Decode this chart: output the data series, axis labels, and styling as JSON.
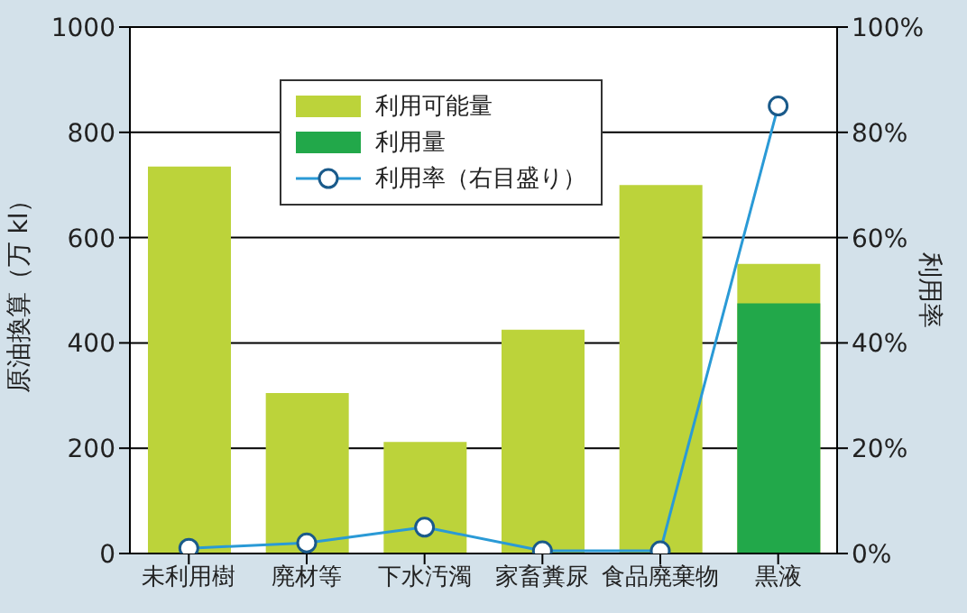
{
  "chart_data": {
    "type": "bar",
    "categories": [
      "未利用樹",
      "廃材等",
      "下水汚濁",
      "家畜糞尿",
      "食品廃棄物",
      "黒液"
    ],
    "ylabel": "原油換算（万 kl）",
    "y2label": "利用率",
    "series": [
      {
        "name": "利用可能量",
        "color": "#bcd33a",
        "values": [
          735,
          305,
          212,
          425,
          700,
          550
        ]
      },
      {
        "name": "利用量",
        "color": "#22a84a",
        "values": [
          null,
          null,
          null,
          null,
          null,
          475
        ]
      },
      {
        "name": "利用率（右目盛り）",
        "type": "line",
        "axis": "y2",
        "color": "#2a9ad6",
        "marker": "circle",
        "values": [
          1,
          2,
          5,
          0.5,
          0.5,
          85
        ]
      }
    ],
    "ylim": [
      0,
      1000
    ],
    "yticks": [
      0,
      200,
      400,
      600,
      800,
      1000
    ],
    "y2lim": [
      0,
      100
    ],
    "y2ticks": [
      {
        "value": 0,
        "label": "0%"
      },
      {
        "value": 20,
        "label": "20%"
      },
      {
        "value": 40,
        "label": "40%"
      },
      {
        "value": 60,
        "label": "60%"
      },
      {
        "value": 80,
        "label": "80%"
      },
      {
        "value": 100,
        "label": "100%"
      }
    ],
    "grid": "y",
    "legend": "top"
  }
}
